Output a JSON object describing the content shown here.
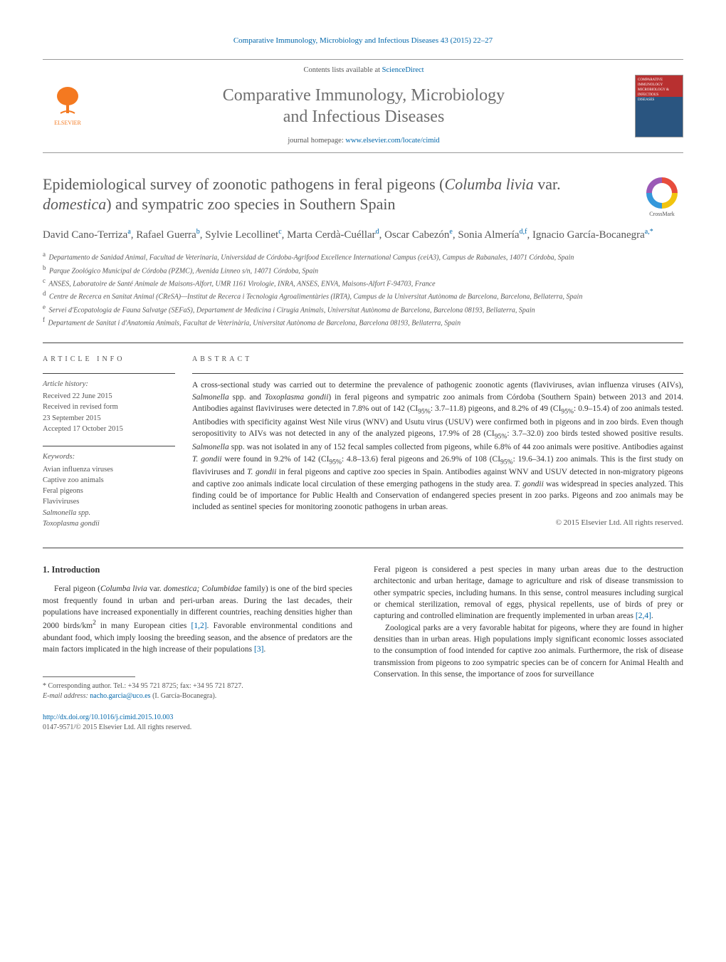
{
  "header_citation": "Comparative Immunology, Microbiology and Infectious Diseases 43 (2015) 22–27",
  "masthead": {
    "contents_prefix": "Contents lists available at ",
    "contents_link": "ScienceDirect",
    "journal_title_l1": "Comparative Immunology, Microbiology",
    "journal_title_l2": "and Infectious Diseases",
    "homepage_prefix": "journal homepage: ",
    "homepage_url": "www.elsevier.com/locate/cimid",
    "publisher": "ELSEVIER",
    "cover_text_l1": "COMPARATIVE",
    "cover_text_l2": "IMMUNOLOGY",
    "cover_text_l3": "MICROBIOLOGY &",
    "cover_text_l4": "INFECTIOUS",
    "cover_text_l5": "DISEASES"
  },
  "crossmark_label": "CrossMark",
  "article": {
    "title_pre": "Epidemiological survey of zoonotic pathogens in feral pigeons (",
    "title_it1": "Columba livia",
    "title_mid": " var. ",
    "title_it2": "domestica",
    "title_post": ") and sympatric zoo species in Southern Spain",
    "authors_html": "David Cano-Terriza|a|, Rafael Guerra|b|, Sylvie Lecollinet|c|, Marta Cerdà-Cuéllar|d|, Oscar Cabezón|e|, Sonia Almería|d,f|, Ignacio García-Bocanegra|a,*|",
    "affiliations": [
      {
        "sup": "a",
        "text": "Departamento de Sanidad Animal, Facultad de Veterinaria, Universidad de Córdoba-Agrifood Excellence International Campus (ceiA3), Campus de Rabanales, 14071 Córdoba, Spain"
      },
      {
        "sup": "b",
        "text": "Parque Zoológico Municipal de Córdoba (PZMC), Avenida Linneo s/n, 14071 Córdoba, Spain"
      },
      {
        "sup": "c",
        "text": "ANSES, Laboratoire de Santé Animale de Maisons-Alfort, UMR 1161 Virologie, INRA, ANSES, ENVA, Maisons-Alfort F-94703, France"
      },
      {
        "sup": "d",
        "text": "Centre de Recerca en Sanitat Animal (CReSA)—Institut de Recerca i Tecnologia Agroalimentàries (IRTA), Campus de la Universitat Autònoma de Barcelona, Barcelona, Bellaterra, Spain"
      },
      {
        "sup": "e",
        "text": "Servei d'Ecopatologia de Fauna Salvatge (SEFaS), Departament de Medicina i Cirugia Animals, Universitat Autònoma de Barcelona, Barcelona 08193, Bellaterra, Spain"
      },
      {
        "sup": "f",
        "text": "Departament de Sanitat i d'Anatomia Animals, Facultat de Veterinària, Universitat Autònoma de Barcelona, Barcelona 08193, Bellaterra, Spain"
      }
    ]
  },
  "info": {
    "label": "article info",
    "history_head": "Article history:",
    "received": "Received 22 June 2015",
    "revised_l1": "Received in revised form",
    "revised_l2": "23 September 2015",
    "accepted": "Accepted 17 October 2015",
    "keywords_head": "Keywords:",
    "keywords": [
      "Avian influenza viruses",
      "Captive zoo animals",
      "Feral pigeons",
      "Flaviviruses",
      "Salmonella spp.",
      "Toxoplasma gondii"
    ]
  },
  "abstract": {
    "label": "abstract",
    "text_parts": {
      "p1": "A cross-sectional study was carried out to determine the prevalence of pathogenic zoonotic agents (flaviviruses, avian influenza viruses (AIVs), ",
      "i1": "Salmonella",
      "p2": " spp. and ",
      "i2": "Toxoplasma gondii",
      "p3": ") in feral pigeons and sympatric zoo animals from Córdoba (Southern Spain) between 2013 and 2014. Antibodies against flaviviruses were detected in 7.8% out of 142 (CI",
      "sub1": "95%",
      "p4": ": 3.7–11.8) pigeons, and 8.2% of 49 (CI",
      "sub2": "95%",
      "p5": ": 0.9–15.4) of zoo animals tested. Antibodies with specificity against West Nile virus (WNV) and Usutu virus (USUV) were confirmed both in pigeons and in zoo birds. Even though seropositivity to AIVs was not detected in any of the analyzed pigeons, 17.9% of 28 (CI",
      "sub3": "95%",
      "p6": ": 3.7–32.0) zoo birds tested showed positive results. ",
      "i3": "Salmonella",
      "p7": " spp. was not isolated in any of 152 fecal samples collected from pigeons, while 6.8% of 44 zoo animals were positive. Antibodies against ",
      "i4": "T. gondii",
      "p8": " were found in 9.2% of 142 (CI",
      "sub4": "95%",
      "p9": ": 4.8–13.6) feral pigeons and 26.9% of 108 (CI",
      "sub5": "95%",
      "p10": ": 19.6–34.1) zoo animals. This is the first study on flaviviruses and ",
      "i5": "T. gondii",
      "p11": " in feral pigeons and captive zoo species in Spain. Antibodies against WNV and USUV detected in non-migratory pigeons and captive zoo animals indicate local circulation of these emerging pathogens in the study area. ",
      "i6": "T. gondii",
      "p12": " was widespread in species analyzed. This finding could be of importance for Public Health and Conservation of endangered species present in zoo parks. Pigeons and zoo animals may be included as sentinel species for monitoring zoonotic pathogens in urban areas."
    },
    "copyright": "© 2015 Elsevier Ltd. All rights reserved."
  },
  "body": {
    "h1": "1. Introduction",
    "col1": {
      "p1a": "Feral pigeon (",
      "p1i1": "Columba livia",
      "p1b": " var. ",
      "p1i2": "domestica; Columbidae",
      "p1c": " family) is one of the bird species most frequently found in urban and peri-urban areas. During the last decades, their populations have increased exponentially in different countries, reaching densities higher than 2000 birds/km",
      "p1sup": "2",
      "p1d": " in many European cities ",
      "cite1": "[1,2]",
      "p1e": ". Favorable environmental conditions and abundant food, which imply loosing the breeding season, and the absence of predators are the main factors implicated in the high increase of their populations ",
      "cite2": "[3]",
      "p1f": "."
    },
    "col2": {
      "p1": "Feral pigeon is considered a pest species in many urban areas due to the destruction architectonic and urban heritage, damage to agriculture and risk of disease transmission to other sympatric species, including humans. In this sense, control measures including surgical or chemical sterilization, removal of eggs, physical repellents, use of birds of prey or capturing and controlled elimination are frequently implemented in urban areas ",
      "cite1": "[2,4]",
      "p1b": ".",
      "p2": "Zoological parks are a very favorable habitat for pigeons, where they are found in higher densities than in urban areas. High populations imply significant economic losses associated to the consumption of food intended for captive zoo animals. Furthermore, the risk of disease transmission from pigeons to zoo sympatric species can be of concern for Animal Health and Conservation. In this sense, the importance of zoos for surveillance"
    }
  },
  "footnote": {
    "line1": "* Corresponding author. Tel.: +34 95 721 8725; fax: +34 95 721 8727.",
    "email_label": "E-mail address: ",
    "email": "nacho.garcia@uco.es",
    "email_tail": " (I. García-Bocanegra)."
  },
  "doi": {
    "url": "http://dx.doi.org/10.1016/j.cimid.2015.10.003",
    "issn_line": "0147-9571/© 2015 Elsevier Ltd. All rights reserved."
  },
  "colors": {
    "link": "#0066aa",
    "text": "#333333",
    "muted": "#555555",
    "orange": "#f47920",
    "rule": "#444444"
  }
}
